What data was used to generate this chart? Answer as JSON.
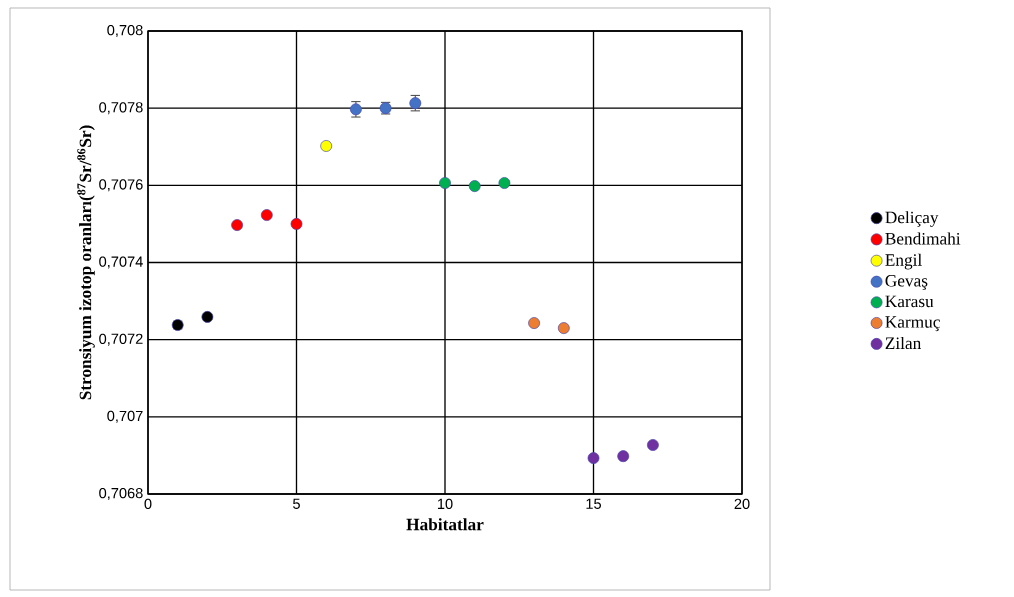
{
  "chart_data": {
    "type": "scatter",
    "xlabel": "Habitatlar",
    "ylabel": "Stronsiyum izotop oranları($^{87}$Sr/$^{86}$Sr)",
    "xlim": [
      0,
      20
    ],
    "ylim": [
      0.7068,
      0.708
    ],
    "xticks": [
      0,
      5,
      10,
      15,
      20
    ],
    "yticks": [
      {
        "value": 0.7068,
        "label": "0,7068"
      },
      {
        "value": 0.707,
        "label": "0,707"
      },
      {
        "value": 0.7072,
        "label": "0,7072"
      },
      {
        "value": 0.7074,
        "label": "0,7074"
      },
      {
        "value": 0.7076,
        "label": "0,7076"
      },
      {
        "value": 0.7078,
        "label": "0,7078"
      },
      {
        "value": 0.708,
        "label": "0,708"
      }
    ],
    "grid": true,
    "legend": "right",
    "marker": "circle",
    "series": [
      {
        "name": "Deliçay",
        "color": "#000000",
        "x": [
          1,
          2
        ],
        "values": [
          0.707238,
          0.707259
        ],
        "errors": [
          1e-05,
          null
        ]
      },
      {
        "name": "Bendimahi",
        "color": "#ff0000",
        "x": [
          3,
          4,
          5
        ],
        "values": [
          0.707497,
          0.707523,
          0.7075
        ]
      },
      {
        "name": "Engil",
        "color": "#ffff00",
        "x": [
          6
        ],
        "values": [
          0.707702
        ]
      },
      {
        "name": "Gevaş",
        "color": "#4472c4",
        "x": [
          7,
          8,
          9
        ],
        "values": [
          0.707797,
          0.7078,
          0.707813
        ],
        "errors": [
          2e-05,
          1.5e-05,
          2e-05
        ]
      },
      {
        "name": "Karasu",
        "color": "#00b050",
        "x": [
          10,
          11,
          12
        ],
        "values": [
          0.707606,
          0.707598,
          0.707606
        ]
      },
      {
        "name": "Karmuç",
        "color": "#ed7d31",
        "x": [
          13,
          14
        ],
        "values": [
          0.707243,
          0.70723
        ]
      },
      {
        "name": "Zilan",
        "color": "#7030a0",
        "x": [
          15,
          16,
          17
        ],
        "values": [
          0.706893,
          0.706898,
          0.706927
        ]
      }
    ]
  }
}
